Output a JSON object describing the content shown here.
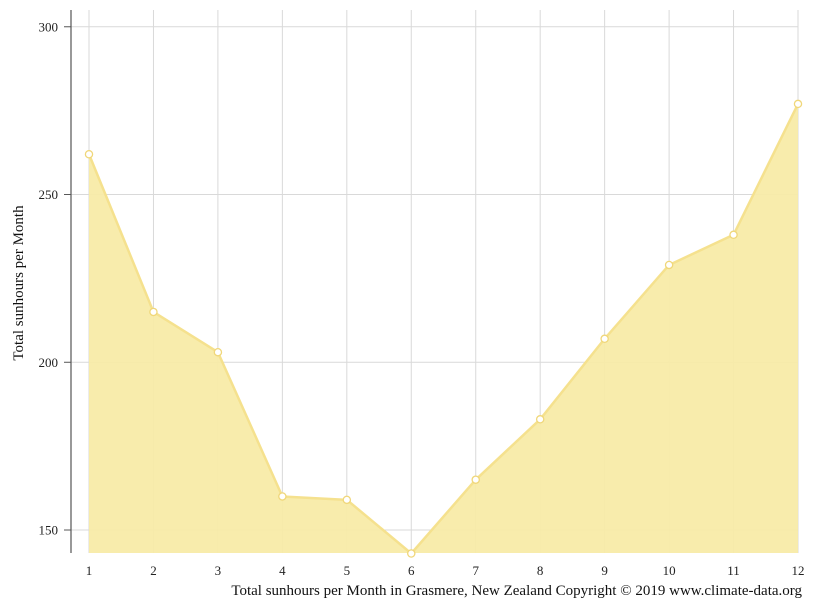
{
  "chart_data": {
    "type": "area",
    "title": "",
    "xlabel": "",
    "ylabel": "Total sunhours per Month",
    "caption": "Total sunhours per Month in Grasmere, New Zealand Copyright © 2019 www.climate-data.org",
    "x": [
      1,
      2,
      3,
      4,
      5,
      6,
      7,
      8,
      9,
      10,
      11,
      12
    ],
    "series": [
      {
        "values": [
          262,
          215,
          203,
          160,
          159,
          143,
          165,
          183,
          207,
          229,
          238,
          277
        ]
      }
    ],
    "ylim": [
      143,
      305
    ],
    "yticks": [
      150,
      200,
      250,
      300
    ],
    "grid": true,
    "colors": {
      "fill": "#f8eba8",
      "line": "#f5e18e",
      "marker_fill": "#ffffff",
      "grid": "#d9d9d9",
      "axis": "#555555"
    }
  }
}
